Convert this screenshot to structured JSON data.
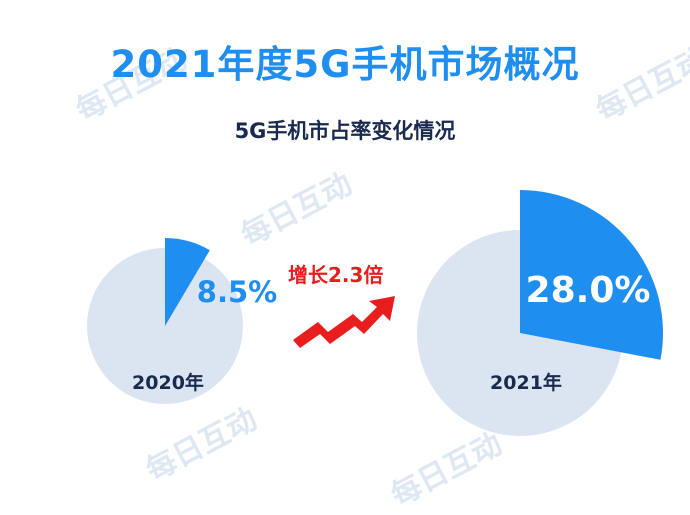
{
  "title": "2021年度5G手机市场概况",
  "subtitle": "5G手机市占率变化情况",
  "watermark": "每日互动",
  "growth_label": "增长2.3倍",
  "colors": {
    "accent": "#1e8ef0",
    "track": "#dbe4f1",
    "text_dark": "#1a2a4f",
    "growth": "#e81e1e"
  },
  "chart_data": {
    "type": "pie",
    "title": "5G手机市占率变化情况",
    "pies": [
      {
        "year_label": "2020年",
        "value": 8.5,
        "value_label": "8.5%"
      },
      {
        "year_label": "2021年",
        "value": 28.0,
        "value_label": "28.0%"
      }
    ]
  }
}
